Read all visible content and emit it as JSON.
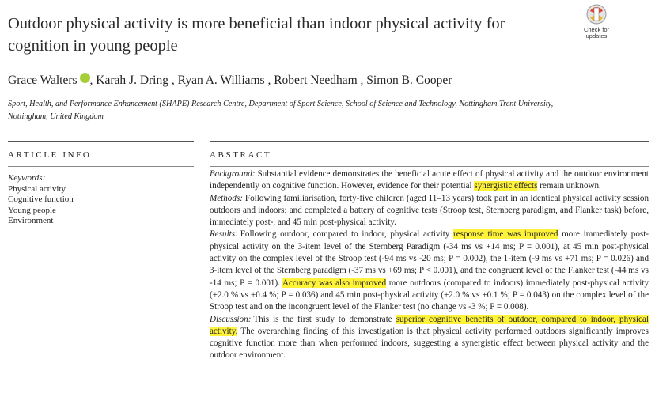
{
  "header": {
    "title": "Outdoor physical activity is more beneficial than indoor physical activity for cognition in young people",
    "authors": [
      "Grace Walters",
      ", Karah J. Dring , Ryan A. Williams , Robert Needham , Simon B. Cooper"
    ],
    "affiliation": "Sport, Health, and Performance Enhancement (SHAPE) Research Centre, Department of Sport Science, School of Science and Technology, Nottingham Trent University, Nottingham, United Kingdom",
    "badge": "Check for updates"
  },
  "article_info": {
    "heading": "ARTICLE INFO",
    "keywords_label": "Keywords:",
    "keywords": [
      "Physical activity",
      "Cognitive function",
      "Young people",
      "Environment"
    ]
  },
  "abstract": {
    "heading": "ABSTRACT",
    "paragraphs": [
      {
        "label": "Background:",
        "segments": [
          {
            "text": "Substantial evidence demonstrates the beneficial acute effect of physical activity and the outdoor environment independently on cognitive function. However, evidence for their potential "
          },
          {
            "text": "synergistic effects",
            "highlight": true
          },
          {
            "text": " remain unknown."
          }
        ]
      },
      {
        "label": "Methods:",
        "segments": [
          {
            "text": "Following familiarisation, forty-five children (aged 11–13 years) took part in an identical physical activity session outdoors and indoors; and completed a battery of cognitive tests (Stroop test, Sternberg paradigm, and Flanker task) before, immediately post-, and 45 min post-physical activity."
          }
        ]
      },
      {
        "label": "Results:",
        "segments": [
          {
            "text": "Following outdoor, compared to indoor, physical activity "
          },
          {
            "text": "response time was improved",
            "highlight": true
          },
          {
            "text": " more immediately post-physical activity on the 3-item level of the Sternberg Paradigm (-34 ms vs +14 ms; P = 0.001), at 45 min post-physical activity on the complex level of the Stroop test (-94 ms vs -20 ms; P = 0.002), the 1-item (-9 ms vs +71 ms; P = 0.026) and 3-item level of the Sternberg paradigm (-37 ms vs +69 ms; P < 0.001), and the congruent level of the Flanker test (-44 ms vs -14 ms; P = 0.001). "
          },
          {
            "text": "Accuracy was also improved",
            "highlight": true
          },
          {
            "text": " more outdoors (compared to indoors) immediately post-physical activity (+2.0 % vs +0.4 %; P = 0.036) and 45 min post-physical activity (+2.0 % vs +0.1 %; P = 0.043) on the complex level of the Stroop test and on the incongruent level of the Flanker test (no change vs -3 %; P = 0.008)."
          }
        ]
      },
      {
        "label": "Discussion:",
        "segments": [
          {
            "text": "This is the first study to demonstrate "
          },
          {
            "text": "superior cognitive benefits of outdoor, compared to indoor, physical activity.",
            "highlight": true
          },
          {
            "text": " The overarching finding of this investigation is that physical activity performed outdoors significantly improves cognitive function more than when performed indoors, suggesting a synergistic effect between physical activity and the outdoor environment."
          }
        ]
      }
    ]
  }
}
